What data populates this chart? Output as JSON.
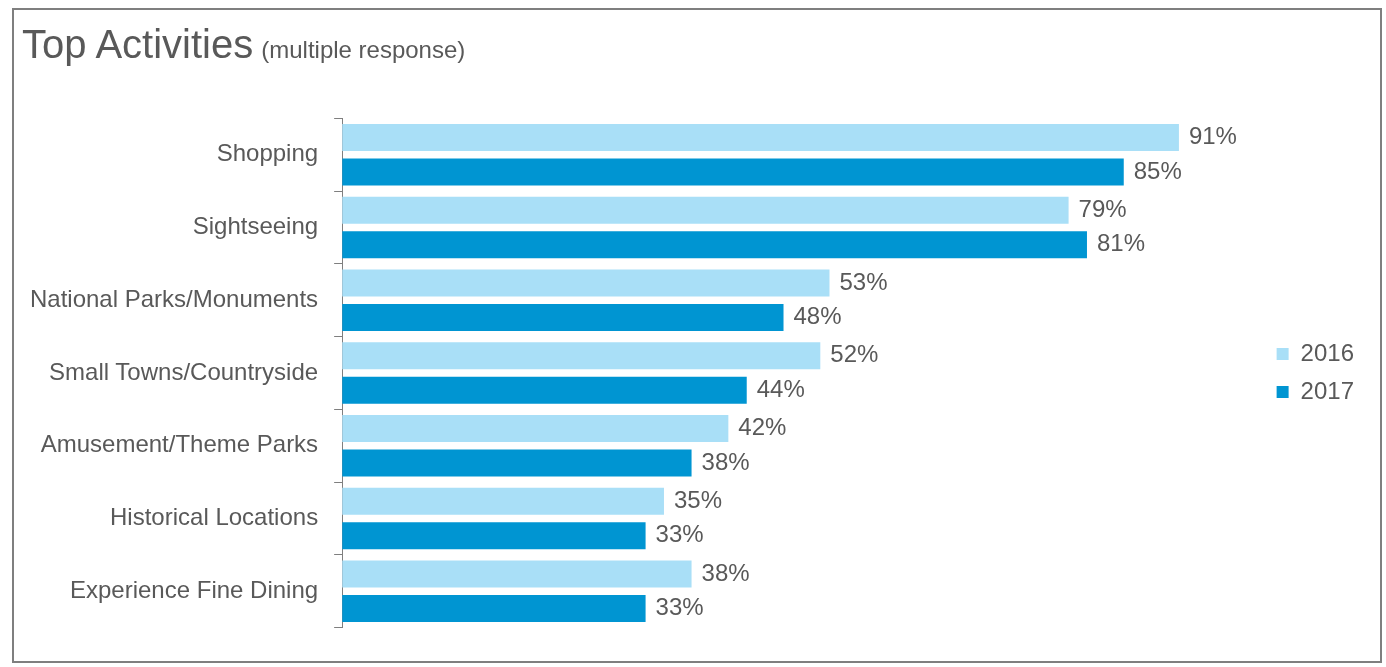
{
  "chart_data": {
    "type": "bar",
    "orientation": "horizontal",
    "title": "Top Activities",
    "subtitle": "(multiple response)",
    "categories": [
      "Shopping",
      "Sightseeing",
      "National Parks/Monuments",
      "Small Towns/Countryside",
      "Amusement/Theme Parks",
      "Historical Locations",
      "Experience Fine Dining"
    ],
    "series": [
      {
        "name": "2016",
        "color": "#a9dff7",
        "values": [
          91,
          79,
          53,
          52,
          42,
          35,
          38
        ],
        "value_labels": [
          "91%",
          "79%",
          "53%",
          "52%",
          "42%",
          "35%",
          "38%"
        ]
      },
      {
        "name": "2017",
        "color": "#0095d2",
        "values": [
          85,
          81,
          48,
          44,
          38,
          33,
          33
        ],
        "value_labels": [
          "85%",
          "81%",
          "48%",
          "44%",
          "38%",
          "33%",
          "33%"
        ]
      }
    ],
    "legend": "right",
    "grid": false
  }
}
